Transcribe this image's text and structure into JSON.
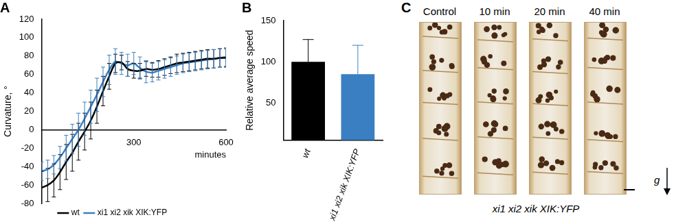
{
  "chart_data": [
    {
      "type": "line",
      "title": "A",
      "xlabel": "minutes",
      "ylabel": "Curvature, °",
      "xlim": [
        0,
        600
      ],
      "xticks": [
        300,
        600
      ],
      "ylim": [
        -80,
        120
      ],
      "yticks": [
        -80,
        -60,
        -40,
        -20,
        0,
        20,
        40,
        60,
        80,
        100,
        120
      ],
      "grid": false,
      "legend": "bottom",
      "x": [
        0,
        20,
        40,
        60,
        80,
        100,
        120,
        140,
        160,
        180,
        200,
        220,
        240,
        260,
        280,
        300,
        320,
        340,
        360,
        380,
        400,
        420,
        440,
        460,
        480,
        500,
        520,
        540,
        560,
        580,
        600
      ],
      "series": [
        {
          "name": "wt",
          "color": "#000000",
          "values": [
            -63,
            -60,
            -55,
            -46,
            -35,
            -25,
            -13,
            -2,
            10,
            25,
            42,
            58,
            72,
            73,
            66,
            64,
            64,
            66,
            65,
            66,
            68,
            70,
            72,
            73,
            74,
            75,
            76,
            77,
            77,
            78,
            78
          ],
          "errors": [
            18,
            18,
            18,
            19,
            19,
            20,
            20,
            20,
            20,
            18,
            16,
            14,
            10,
            8,
            8,
            8,
            8,
            8,
            8,
            9,
            9,
            9,
            10,
            10,
            10,
            10,
            10,
            10,
            10,
            10,
            10
          ]
        },
        {
          "name": "xi1 xi2 xik XIK:YFP",
          "color": "#3a7fc1",
          "values": [
            -45,
            -43,
            -38,
            -30,
            -20,
            -10,
            0,
            12,
            25,
            38,
            52,
            65,
            74,
            72,
            70,
            72,
            67,
            63,
            62,
            64,
            66,
            68,
            70,
            72,
            73,
            74,
            75,
            76,
            77,
            78,
            79
          ],
          "errors": [
            10,
            10,
            10,
            12,
            14,
            16,
            18,
            18,
            18,
            18,
            16,
            16,
            14,
            12,
            12,
            12,
            12,
            12,
            10,
            10,
            10,
            10,
            10,
            10,
            10,
            10,
            10,
            10,
            10,
            10,
            10
          ]
        }
      ]
    },
    {
      "type": "bar",
      "title": "B",
      "ylabel": "Relative average speed",
      "categories": [
        "wt",
        "xi1 xi2 xik XIK:YFP"
      ],
      "values": [
        100,
        85
      ],
      "errors": [
        27,
        35
      ],
      "colors": [
        "#000000",
        "#3a7fc1"
      ],
      "ylim": [
        5,
        150
      ],
      "yticks": [
        50,
        100,
        150
      ],
      "grid": false
    }
  ],
  "panel_c": {
    "label": "C",
    "columns": [
      "Control",
      "10 min",
      "20 min",
      "40 min"
    ],
    "gravity_label": "g",
    "caption": "xi1 xi2 xik XIK:YFP"
  }
}
